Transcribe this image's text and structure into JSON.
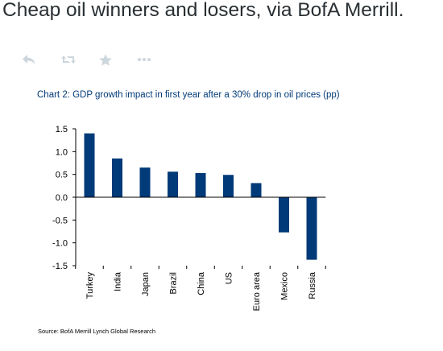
{
  "tweet": {
    "text": "Cheap oil winners and losers, via BofA Merrill."
  },
  "actions": [
    {
      "name": "reply",
      "icon": "reply-icon"
    },
    {
      "name": "retweet",
      "icon": "retweet-icon"
    },
    {
      "name": "favorite",
      "icon": "star-icon"
    },
    {
      "name": "more",
      "icon": "more-dots-icon"
    }
  ],
  "colors": {
    "bar": "#003a78",
    "title": "#003a78",
    "action_icon": "#ccd6dd"
  },
  "chart_data": {
    "type": "bar",
    "title": "Chart 2: GDP growth impact in first year after a 30% drop in oil prices (pp)",
    "categories": [
      "Turkey",
      "India",
      "Japan",
      "Brazil",
      "China",
      "US",
      "Euro area",
      "Mexico",
      "Russia"
    ],
    "values": [
      1.4,
      0.85,
      0.65,
      0.56,
      0.53,
      0.49,
      0.31,
      -0.77,
      -1.37
    ],
    "xlabel": "",
    "ylabel": "",
    "ylim": [
      -1.5,
      1.5
    ],
    "yticks": [
      "1.5",
      "1.0",
      "0.5",
      "0.0",
      "-0.5",
      "-1.0",
      "-1.5"
    ],
    "ytick_values": [
      1.5,
      1.0,
      0.5,
      0.0,
      -0.5,
      -1.0,
      -1.5
    ],
    "grid": false,
    "source": "Source: BofA Merrill Lynch Global Research"
  }
}
